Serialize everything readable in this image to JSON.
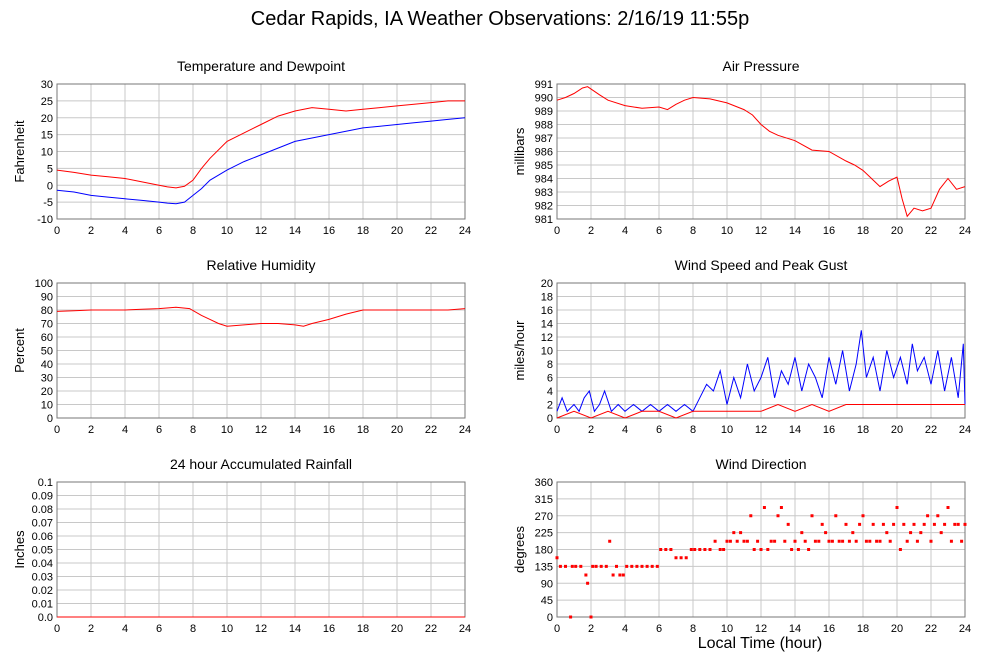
{
  "page": {
    "title": "Cedar Rapids, IA Weather Observations: 2/16/19 11:55p",
    "x_axis_label": "Local Time (hour)"
  },
  "colors": {
    "red": "#ff0000",
    "blue": "#0000ff",
    "grid": "#c8c8c8"
  },
  "chart_data": [
    {
      "type": "line",
      "title": "Temperature and Dewpoint",
      "ylabel": "Fahrenheit",
      "xlim": [
        0,
        24
      ],
      "ylim": [
        -10,
        30
      ],
      "xticks": [
        0,
        2,
        4,
        6,
        8,
        10,
        12,
        14,
        16,
        18,
        20,
        22,
        24
      ],
      "yticks": [
        -10,
        -5,
        0,
        5,
        10,
        15,
        20,
        25,
        30
      ],
      "grid": true,
      "series": [
        {
          "color": "red",
          "x": [
            0,
            1,
            2,
            3,
            4,
            5,
            6,
            6.5,
            7,
            7.5,
            8,
            8.5,
            9,
            10,
            11,
            12,
            13,
            14,
            15,
            16,
            17,
            18,
            19,
            20,
            21,
            22,
            23,
            24
          ],
          "y": [
            4.5,
            3.8,
            3,
            2.5,
            2,
            1,
            0,
            -0.5,
            -0.8,
            -0.3,
            1.5,
            5,
            8,
            13,
            15.5,
            18,
            20.5,
            22,
            23,
            22.5,
            22,
            22.5,
            23,
            23.5,
            24,
            24.5,
            25,
            25
          ]
        },
        {
          "color": "blue",
          "x": [
            0,
            1,
            2,
            3,
            4,
            5,
            6,
            6.5,
            7,
            7.5,
            8,
            8.5,
            9,
            10,
            11,
            12,
            13,
            14,
            15,
            16,
            17,
            18,
            19,
            20,
            21,
            22,
            23,
            24
          ],
          "y": [
            -1.5,
            -2,
            -3,
            -3.5,
            -4,
            -4.5,
            -5,
            -5.3,
            -5.5,
            -5,
            -3,
            -1,
            1.5,
            4.5,
            7,
            9,
            11,
            13,
            14,
            15,
            16,
            17,
            17.5,
            18,
            18.5,
            19,
            19.5,
            20
          ]
        }
      ]
    },
    {
      "type": "line",
      "title": "Air Pressure",
      "ylabel": "millibars",
      "xlim": [
        0,
        24
      ],
      "ylim": [
        981,
        991
      ],
      "xticks": [
        0,
        2,
        4,
        6,
        8,
        10,
        12,
        14,
        16,
        18,
        20,
        22,
        24
      ],
      "yticks": [
        981,
        982,
        983,
        984,
        985,
        986,
        987,
        988,
        989,
        990,
        991
      ],
      "grid": true,
      "series": [
        {
          "color": "red",
          "x": [
            0,
            0.5,
            1,
            1.5,
            1.8,
            2.5,
            3,
            4,
            5,
            6,
            6.5,
            7,
            7.5,
            8,
            9,
            10,
            11,
            11.5,
            12,
            12.5,
            13,
            14,
            15,
            16,
            17,
            17.5,
            18,
            18.5,
            19,
            19.5,
            20,
            20.3,
            20.6,
            21,
            21.5,
            22,
            22.5,
            23,
            23.5,
            24
          ],
          "y": [
            989.8,
            990,
            990.3,
            990.7,
            990.8,
            990.2,
            989.8,
            989.4,
            989.2,
            989.3,
            989.1,
            989.5,
            989.8,
            990,
            989.9,
            989.6,
            989.1,
            988.7,
            988,
            987.5,
            987.2,
            986.8,
            986.1,
            986,
            985.3,
            985,
            984.6,
            984,
            983.4,
            983.8,
            984.1,
            982.5,
            981.2,
            981.8,
            981.6,
            981.8,
            983.2,
            984,
            983.2,
            983.4
          ]
        }
      ]
    },
    {
      "type": "line",
      "title": "Relative Humidity",
      "ylabel": "Percent",
      "xlim": [
        0,
        24
      ],
      "ylim": [
        0,
        100
      ],
      "xticks": [
        0,
        2,
        4,
        6,
        8,
        10,
        12,
        14,
        16,
        18,
        20,
        22,
        24
      ],
      "yticks": [
        0,
        10,
        20,
        30,
        40,
        50,
        60,
        70,
        80,
        90,
        100
      ],
      "grid": true,
      "series": [
        {
          "color": "red",
          "x": [
            0,
            1,
            2,
            3,
            4,
            5,
            6,
            7,
            7.8,
            8.5,
            9,
            9.5,
            10,
            11,
            12,
            13,
            14,
            14.5,
            15,
            16,
            17,
            18,
            19,
            20,
            21,
            22,
            23,
            24
          ],
          "y": [
            79,
            79.5,
            80,
            80,
            80,
            80.5,
            81,
            82,
            81,
            76,
            73,
            70,
            68,
            69,
            70,
            70,
            69,
            68,
            70,
            73,
            77,
            80,
            80,
            80,
            80,
            80,
            80,
            81
          ]
        }
      ]
    },
    {
      "type": "line",
      "title": "Wind Speed and Peak Gust",
      "ylabel": "miles/hour",
      "xlim": [
        0,
        24
      ],
      "ylim": [
        0,
        20
      ],
      "xticks": [
        0,
        2,
        4,
        6,
        8,
        10,
        12,
        14,
        16,
        18,
        20,
        22,
        24
      ],
      "yticks": [
        0,
        2,
        4,
        6,
        8,
        10,
        12,
        14,
        16,
        18,
        20
      ],
      "grid": true,
      "series": [
        {
          "color": "blue",
          "x": [
            0,
            0.3,
            0.6,
            1,
            1.3,
            1.6,
            1.9,
            2.2,
            2.5,
            2.8,
            3.2,
            3.6,
            4,
            4.5,
            5,
            5.5,
            6,
            6.5,
            7,
            7.5,
            8,
            8.4,
            8.8,
            9.2,
            9.6,
            10,
            10.4,
            10.8,
            11.2,
            11.6,
            12,
            12.4,
            12.8,
            13.2,
            13.6,
            14,
            14.4,
            14.8,
            15.2,
            15.6,
            16,
            16.4,
            16.8,
            17.2,
            17.6,
            17.9,
            18.2,
            18.6,
            19,
            19.4,
            19.8,
            20.2,
            20.6,
            20.9,
            21.2,
            21.6,
            22,
            22.4,
            22.8,
            23.2,
            23.6,
            23.9,
            24
          ],
          "y": [
            1,
            3,
            1,
            2,
            1,
            3,
            4,
            1,
            2,
            4,
            1,
            2,
            1,
            2,
            1,
            2,
            1,
            2,
            1,
            2,
            1,
            3,
            5,
            4,
            7,
            2,
            6,
            3,
            8,
            4,
            6,
            9,
            3,
            7,
            5,
            9,
            4,
            8,
            6,
            3,
            9,
            5,
            10,
            4,
            8,
            13,
            6,
            9,
            4,
            10,
            6,
            9,
            5,
            11,
            7,
            9,
            5,
            10,
            4,
            9,
            3,
            11,
            2
          ]
        },
        {
          "color": "red",
          "x": [
            0,
            1,
            2,
            3,
            4,
            5,
            6,
            7,
            8,
            9,
            10,
            11,
            12,
            13,
            14,
            15,
            16,
            17,
            18,
            19,
            20,
            21,
            22,
            23,
            24
          ],
          "y": [
            0,
            1,
            0,
            1,
            0,
            1,
            1,
            0,
            1,
            1,
            1,
            1,
            1,
            2,
            1,
            2,
            1,
            2,
            2,
            2,
            2,
            2,
            2,
            2,
            2
          ]
        }
      ]
    },
    {
      "type": "line",
      "title": "24 hour Accumulated Rainfall",
      "ylabel": "Inches",
      "xlim": [
        0,
        24
      ],
      "ylim": [
        0,
        0.1
      ],
      "xticks": [
        0,
        2,
        4,
        6,
        8,
        10,
        12,
        14,
        16,
        18,
        20,
        22,
        24
      ],
      "yticks": [
        0.0,
        0.01,
        0.02,
        0.03,
        0.04,
        0.05,
        0.06,
        0.07,
        0.08,
        0.09,
        0.1
      ],
      "ytick_labels": [
        "0.0",
        "0.01",
        "0.02",
        "0.03",
        "0.04",
        "0.05",
        "0.06",
        "0.07",
        "0.08",
        "0.09",
        "0.1"
      ],
      "grid": true,
      "series": [
        {
          "color": "red",
          "x": [
            0,
            24
          ],
          "y": [
            0,
            0
          ]
        }
      ]
    },
    {
      "type": "scatter",
      "title": "Wind Direction",
      "ylabel": "degrees",
      "xlim": [
        0,
        24
      ],
      "ylim": [
        0,
        360
      ],
      "xticks": [
        0,
        2,
        4,
        6,
        8,
        10,
        12,
        14,
        16,
        18,
        20,
        22,
        24
      ],
      "yticks": [
        0,
        45,
        90,
        135,
        180,
        225,
        270,
        315,
        360
      ],
      "grid": true,
      "series": [
        {
          "color": "red",
          "x": [
            0,
            0.2,
            0.5,
            0.8,
            0.9,
            1.1,
            1.4,
            1.7,
            1.8,
            2,
            2.1,
            2.3,
            2.6,
            2.9,
            3.1,
            3.3,
            3.5,
            3.7,
            3.9,
            4.1,
            4.4,
            4.7,
            5,
            5.3,
            5.6,
            5.9,
            6.1,
            6.4,
            6.7,
            7,
            7.3,
            7.6,
            7.9,
            8.1,
            8.4,
            8.7,
            9,
            9.3,
            9.6,
            9.8,
            10,
            10.2,
            10.4,
            10.6,
            10.8,
            11,
            11.2,
            11.4,
            11.6,
            11.8,
            12,
            12.2,
            12.4,
            12.6,
            12.8,
            13,
            13.2,
            13.4,
            13.6,
            13.8,
            14,
            14.2,
            14.4,
            14.6,
            14.8,
            15,
            15.2,
            15.4,
            15.6,
            15.8,
            16,
            16.2,
            16.4,
            16.6,
            16.8,
            17,
            17.2,
            17.4,
            17.6,
            17.8,
            18,
            18.2,
            18.4,
            18.6,
            18.8,
            19,
            19.2,
            19.4,
            19.6,
            19.8,
            20,
            20.2,
            20.4,
            20.6,
            20.8,
            21,
            21.2,
            21.4,
            21.6,
            21.8,
            22,
            22.2,
            22.4,
            22.6,
            22.8,
            23,
            23.2,
            23.4,
            23.6,
            23.8,
            24
          ],
          "y": [
            158,
            135,
            135,
            0,
            135,
            135,
            135,
            112,
            90,
            0,
            135,
            135,
            135,
            135,
            202,
            112,
            135,
            112,
            112,
            135,
            135,
            135,
            135,
            135,
            135,
            135,
            180,
            180,
            180,
            158,
            158,
            158,
            180,
            180,
            180,
            180,
            180,
            202,
            180,
            180,
            202,
            202,
            225,
            202,
            225,
            202,
            202,
            270,
            180,
            202,
            180,
            292,
            180,
            202,
            202,
            270,
            292,
            202,
            247,
            180,
            202,
            180,
            225,
            202,
            180,
            270,
            202,
            202,
            247,
            225,
            202,
            202,
            270,
            202,
            202,
            247,
            202,
            225,
            202,
            247,
            270,
            202,
            202,
            247,
            202,
            202,
            247,
            225,
            202,
            247,
            292,
            180,
            247,
            202,
            225,
            247,
            202,
            225,
            247,
            270,
            202,
            247,
            270,
            225,
            247,
            292,
            202,
            247,
            247,
            202,
            247
          ]
        }
      ]
    }
  ]
}
